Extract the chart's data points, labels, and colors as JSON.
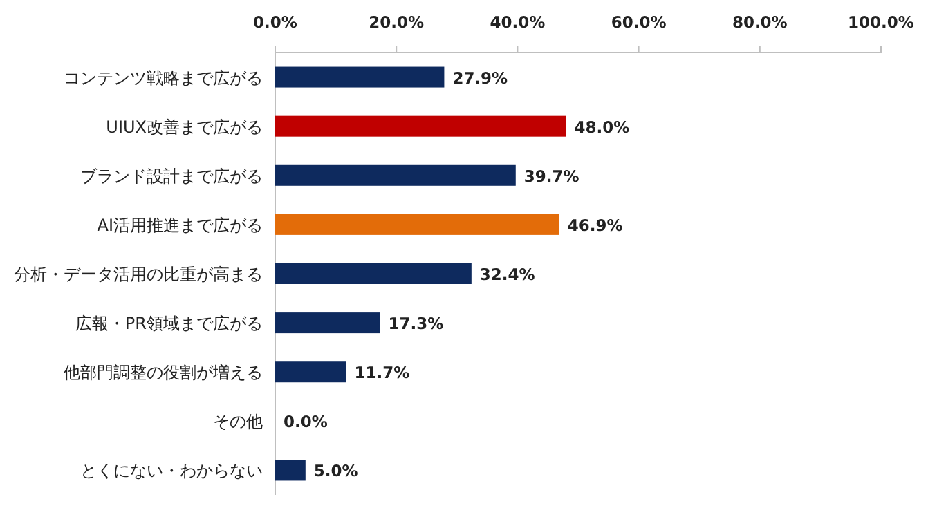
{
  "chart_data": {
    "type": "bar",
    "orientation": "horizontal",
    "categories": [
      "コンテンツ戦略まで広がる",
      "UIUX改善まで広がる",
      "ブランド設計まで広がる",
      "AI活用推進まで広がる",
      "分析・データ活用の比重が高まる",
      "広報・PR領域まで広がる",
      "他部門調整の役割が増える",
      "その他",
      "とくにない・わからない"
    ],
    "values": [
      27.9,
      48.0,
      39.7,
      46.9,
      32.4,
      17.3,
      11.7,
      0.0,
      5.0
    ],
    "value_labels": [
      "27.9%",
      "48.0%",
      "39.7%",
      "46.9%",
      "32.4%",
      "17.3%",
      "11.7%",
      "0.0%",
      "5.0%"
    ],
    "colors": [
      "#0e2a5e",
      "#c00000",
      "#0e2a5e",
      "#e36c09",
      "#0e2a5e",
      "#0e2a5e",
      "#0e2a5e",
      "#0e2a5e",
      "#0e2a5e"
    ],
    "xlim": [
      0,
      100
    ],
    "xticks": [
      {
        "value": 0,
        "label": "0.0%"
      },
      {
        "value": 20,
        "label": "20.0%"
      },
      {
        "value": 40,
        "label": "40.0%"
      },
      {
        "value": 60,
        "label": "60.0%"
      },
      {
        "value": 80,
        "label": "80.0%"
      },
      {
        "value": 100,
        "label": "100.0%"
      }
    ],
    "grid": false
  }
}
